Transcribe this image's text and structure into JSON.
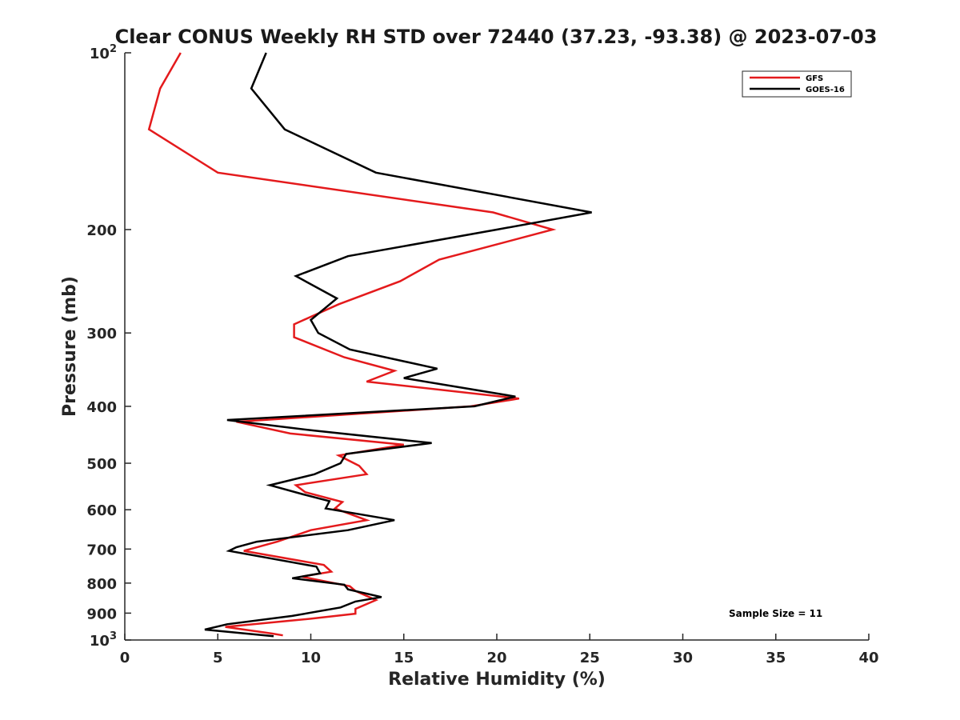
{
  "chart_data": {
    "type": "line",
    "title": "Clear CONUS Weekly RH STD over 72440 (37.23, -93.38) @ 2023-07-03",
    "xlabel": "Relative Humidity (%)",
    "ylabel": "Pressure (mb)",
    "xlim": [
      0,
      40
    ],
    "ylim": [
      100,
      1000
    ],
    "y_scale": "log",
    "y_reversed": true,
    "grid": false,
    "legend_position": "top-right",
    "annotation": "Sample Size = 11",
    "x_ticks": [
      {
        "value": 0,
        "label": "0"
      },
      {
        "value": 5,
        "label": "5"
      },
      {
        "value": 10,
        "label": "10"
      },
      {
        "value": 15,
        "label": "15"
      },
      {
        "value": 20,
        "label": "20"
      },
      {
        "value": 25,
        "label": "25"
      },
      {
        "value": 30,
        "label": "30"
      },
      {
        "value": 35,
        "label": "35"
      },
      {
        "value": 40,
        "label": "40"
      }
    ],
    "y_ticks": [
      {
        "value": 100,
        "label": "10",
        "sup": "2"
      },
      {
        "value": 200,
        "label": "200",
        "sup": ""
      },
      {
        "value": 300,
        "label": "300",
        "sup": ""
      },
      {
        "value": 400,
        "label": "400",
        "sup": ""
      },
      {
        "value": 500,
        "label": "500",
        "sup": ""
      },
      {
        "value": 600,
        "label": "600",
        "sup": ""
      },
      {
        "value": 700,
        "label": "700",
        "sup": ""
      },
      {
        "value": 800,
        "label": "800",
        "sup": ""
      },
      {
        "value": 900,
        "label": "900",
        "sup": ""
      },
      {
        "value": 1000,
        "label": "10",
        "sup": "3"
      }
    ],
    "series": [
      {
        "name": "GFS",
        "color": "#e41a1c",
        "points": [
          [
            3.0,
            100
          ],
          [
            1.9,
            115
          ],
          [
            1.3,
            135
          ],
          [
            5.0,
            160
          ],
          [
            19.8,
            187
          ],
          [
            23.0,
            200
          ],
          [
            16.9,
            225
          ],
          [
            14.8,
            245
          ],
          [
            11.5,
            268
          ],
          [
            9.1,
            290
          ],
          [
            9.1,
            305
          ],
          [
            11.8,
            330
          ],
          [
            14.5,
            348
          ],
          [
            13.0,
            363
          ],
          [
            21.2,
            388
          ],
          [
            18.6,
            400
          ],
          [
            6.0,
            425
          ],
          [
            8.9,
            445
          ],
          [
            15.0,
            465
          ],
          [
            11.5,
            485
          ],
          [
            12.6,
            505
          ],
          [
            13.0,
            522
          ],
          [
            9.2,
            545
          ],
          [
            9.7,
            560
          ],
          [
            11.7,
            582
          ],
          [
            11.3,
            597
          ],
          [
            13.0,
            625
          ],
          [
            10.0,
            650
          ],
          [
            8.2,
            680
          ],
          [
            6.4,
            705
          ],
          [
            10.7,
            745
          ],
          [
            11.1,
            765
          ],
          [
            9.5,
            780
          ],
          [
            12.1,
            810
          ],
          [
            12.4,
            825
          ],
          [
            13.5,
            855
          ],
          [
            12.4,
            885
          ],
          [
            12.4,
            902
          ],
          [
            10.0,
            920
          ],
          [
            5.4,
            950
          ],
          [
            7.9,
            975
          ],
          [
            8.5,
            982
          ]
        ]
      },
      {
        "name": "GOES-16",
        "color": "#000000",
        "points": [
          [
            7.6,
            100
          ],
          [
            6.8,
            115
          ],
          [
            8.6,
            135
          ],
          [
            13.5,
            160
          ],
          [
            25.1,
            187
          ],
          [
            20.0,
            200
          ],
          [
            12.0,
            222
          ],
          [
            9.2,
            240
          ],
          [
            11.4,
            262
          ],
          [
            10.0,
            285
          ],
          [
            10.4,
            300
          ],
          [
            12.1,
            320
          ],
          [
            16.8,
            345
          ],
          [
            15.0,
            358
          ],
          [
            21.0,
            385
          ],
          [
            18.8,
            400
          ],
          [
            5.5,
            422
          ],
          [
            10.2,
            440
          ],
          [
            16.5,
            462
          ],
          [
            11.9,
            482
          ],
          [
            11.6,
            500
          ],
          [
            10.2,
            522
          ],
          [
            7.8,
            545
          ],
          [
            9.6,
            565
          ],
          [
            11.0,
            580
          ],
          [
            10.8,
            597
          ],
          [
            14.5,
            625
          ],
          [
            12.0,
            650
          ],
          [
            7.1,
            680
          ],
          [
            6.0,
            695
          ],
          [
            5.6,
            705
          ],
          [
            10.3,
            750
          ],
          [
            10.5,
            770
          ],
          [
            9.0,
            785
          ],
          [
            11.8,
            805
          ],
          [
            12.0,
            820
          ],
          [
            13.8,
            845
          ],
          [
            12.4,
            860
          ],
          [
            11.6,
            880
          ],
          [
            9.0,
            910
          ],
          [
            5.5,
            940
          ],
          [
            4.3,
            960
          ],
          [
            8.0,
            985
          ]
        ]
      }
    ]
  }
}
